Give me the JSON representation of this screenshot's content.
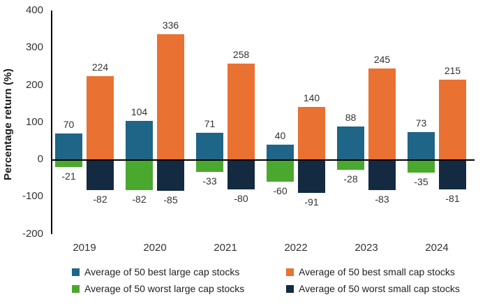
{
  "chart_data": {
    "type": "bar",
    "title": "",
    "categories": [
      "2019",
      "2020",
      "2021",
      "2022",
      "2023",
      "2024"
    ],
    "series": [
      {
        "name": "Average of 50 best large cap stocks",
        "color": "#1E6587",
        "column": 0,
        "values": [
          70,
          104,
          71,
          40,
          88,
          73
        ]
      },
      {
        "name": "Average of 50 best small cap stocks",
        "color": "#E97132",
        "column": 1,
        "values": [
          224,
          336,
          258,
          140,
          245,
          215
        ]
      },
      {
        "name": "Average of 50 worst large cap stocks",
        "color": "#4BA82F",
        "column": 0,
        "values": [
          -21,
          -82,
          -33,
          -60,
          -28,
          -35
        ]
      },
      {
        "name": "Average of 50 worst small cap stocks",
        "color": "#132A40",
        "column": 1,
        "values": [
          -82,
          -85,
          -80,
          -91,
          -83,
          -81
        ]
      }
    ],
    "xlabel": "",
    "ylabel": "Percentage return (%)",
    "ylim": [
      -200,
      400
    ],
    "yticks": [
      400,
      300,
      200,
      100,
      0,
      -100,
      -200
    ],
    "grid": false,
    "legend_position": "bottom",
    "axis_color": "#000000",
    "text_color": "#333333",
    "legend_text_color": "#1f1f1f"
  }
}
